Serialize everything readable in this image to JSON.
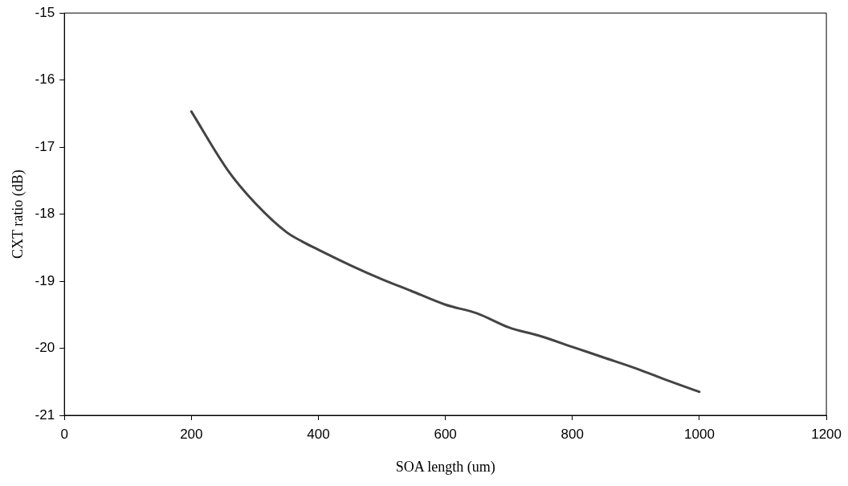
{
  "chart_data": {
    "type": "line",
    "xlabel": "SOA length (um)",
    "ylabel": "CXT ratio (dB)",
    "x": [
      200,
      257,
      300,
      350,
      375,
      400,
      450,
      500,
      545,
      600,
      650,
      700,
      750,
      800,
      850,
      900,
      950,
      1000
    ],
    "series": [
      {
        "color": "#444444",
        "values": [
          -16.47,
          -17.34,
          -17.83,
          -18.27,
          -18.41,
          -18.53,
          -18.76,
          -18.97,
          -19.14,
          -19.35,
          -19.48,
          -19.69,
          -19.82,
          -19.98,
          -20.14,
          -20.3,
          -20.48,
          -20.65
        ]
      }
    ],
    "xlim": [
      0,
      1200
    ],
    "xticks": [
      0,
      200,
      400,
      600,
      800,
      1000,
      1200
    ],
    "ylim": [
      -21,
      -15
    ],
    "yticks": [
      -21,
      -20,
      -19,
      -18,
      -17,
      -16,
      -15
    ],
    "grid": false,
    "legend": false,
    "marker": "none",
    "line_style": "solid"
  }
}
